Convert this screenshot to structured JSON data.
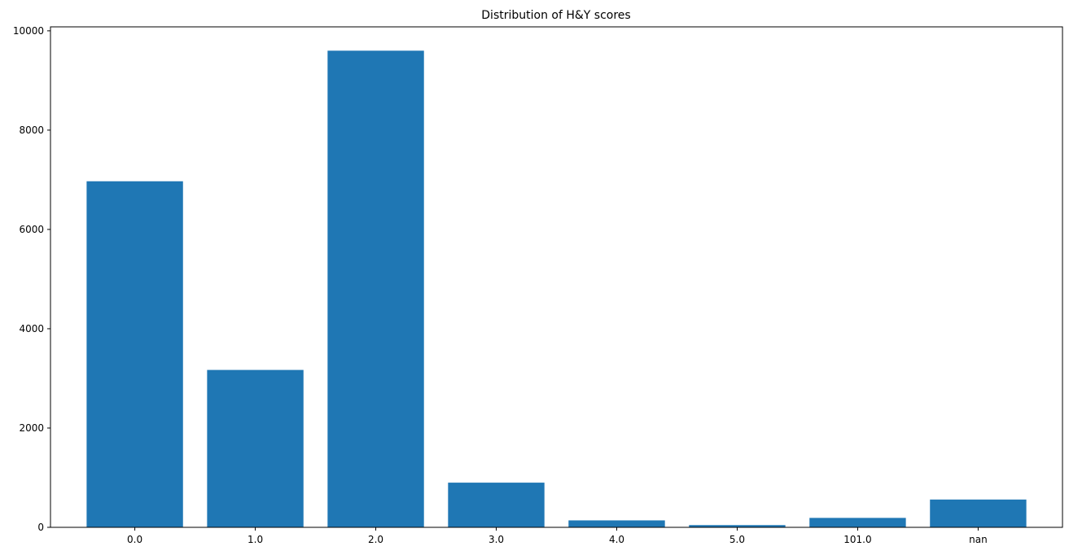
{
  "chart_data": {
    "type": "bar",
    "title": "Distribution of H&Y scores",
    "xlabel": "",
    "ylabel": "",
    "categories": [
      "0.0",
      "1.0",
      "2.0",
      "3.0",
      "4.0",
      "5.0",
      "101.0",
      "nan"
    ],
    "values": [
      6970,
      3170,
      9600,
      900,
      140,
      45,
      190,
      560
    ],
    "ylim": [
      0,
      10080
    ],
    "yticks": [
      0,
      2000,
      4000,
      6000,
      8000,
      10000
    ],
    "grid": false,
    "legend": "none",
    "bar_color": "#1f77b4"
  }
}
